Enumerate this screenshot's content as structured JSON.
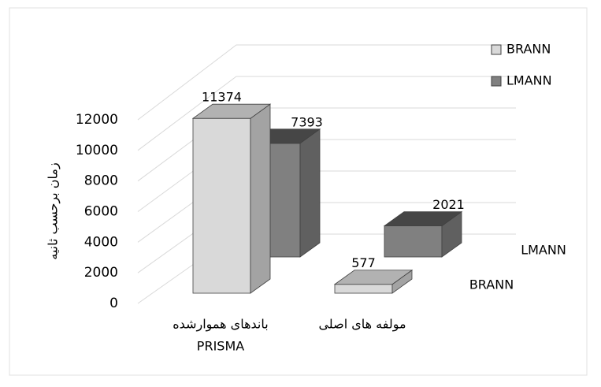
{
  "chart_data": {
    "type": "bar3d",
    "categories": [
      [
        "باندهای هموارشده",
        "PRISMA"
      ],
      [
        "مولفه های اصلی"
      ]
    ],
    "series": [
      {
        "name": "BRANN",
        "color": "#d9d9d9",
        "values": [
          11374,
          577
        ]
      },
      {
        "name": "LMANN",
        "color": "#808080",
        "values": [
          7393,
          2021
        ]
      }
    ],
    "y_label": "زمان برحسب ثانیه",
    "ylim": [
      0,
      12000
    ],
    "yticks": [
      0,
      2000,
      4000,
      6000,
      8000,
      10000,
      12000
    ],
    "grid": true,
    "legend": "top-right"
  }
}
